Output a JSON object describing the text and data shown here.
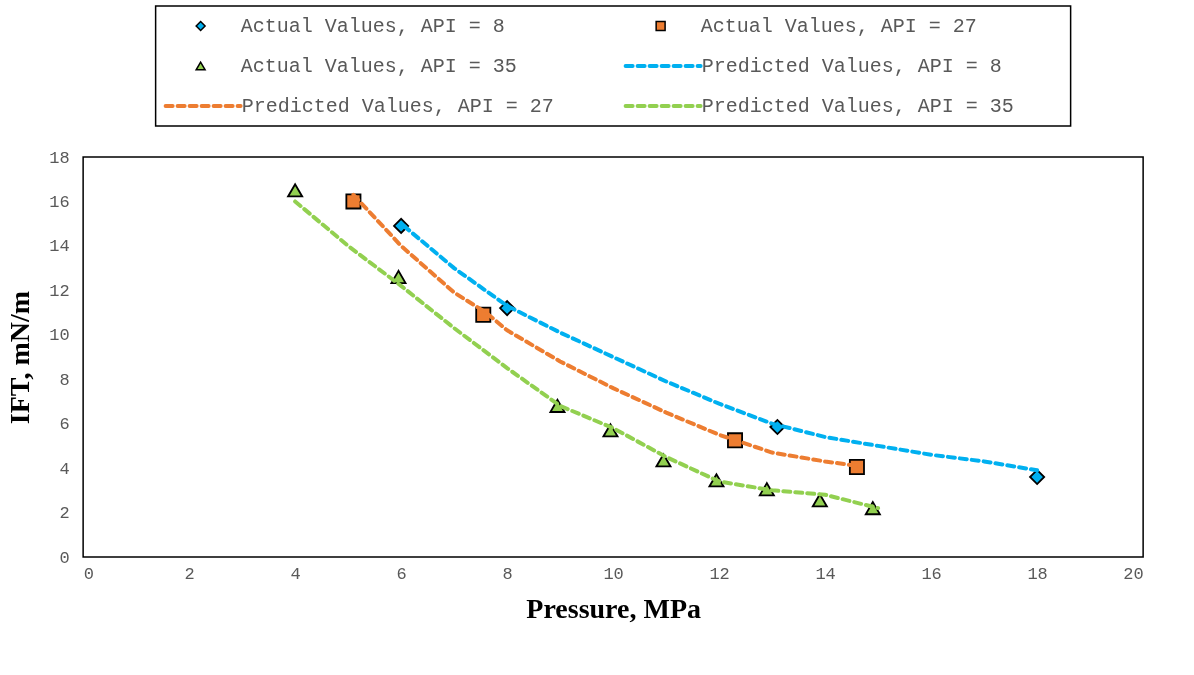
{
  "chart_data": {
    "type": "scatter",
    "xlabel": "Pressure, MPa",
    "ylabel": "IFT, mN/m",
    "xlim": [
      0,
      20
    ],
    "ylim": [
      0,
      18
    ],
    "xticks": [
      0,
      2,
      4,
      6,
      8,
      10,
      12,
      14,
      16,
      18,
      20
    ],
    "yticks": [
      0,
      2,
      4,
      6,
      8,
      10,
      12,
      14,
      16,
      18
    ],
    "grid": false,
    "legend": "top",
    "series": [
      {
        "name": "Actual Values, API = 8",
        "marker": "diamond",
        "color": "#00b0f0",
        "x": [
          6.0,
          8.0,
          13.1,
          18.0
        ],
        "values": [
          14.9,
          11.2,
          5.85,
          3.6
        ]
      },
      {
        "name": "Actual Values, API = 27",
        "marker": "square",
        "color": "#ed7d31",
        "x": [
          5.1,
          7.55,
          12.3,
          14.6
        ],
        "values": [
          16.0,
          10.9,
          5.25,
          4.05
        ]
      },
      {
        "name": "Actual Values, API = 35",
        "marker": "triangle",
        "color": "#92d050",
        "x": [
          4.0,
          5.95,
          8.95,
          9.95,
          10.95,
          11.95,
          12.9,
          13.9,
          14.9
        ],
        "values": [
          16.5,
          12.6,
          6.8,
          5.7,
          4.35,
          3.45,
          3.05,
          2.55,
          2.2
        ]
      },
      {
        "name": "Predicted Values, API = 8",
        "type": "line",
        "line_style": "dashed",
        "marker": "none",
        "color": "#00b0f0",
        "x": [
          6.05,
          7,
          8,
          9,
          10,
          11,
          12,
          13,
          14,
          15,
          16,
          17,
          18
        ],
        "values": [
          14.9,
          13.0,
          11.3,
          10.1,
          9.0,
          7.9,
          6.9,
          6.0,
          5.4,
          5.0,
          4.6,
          4.3,
          3.9
        ]
      },
      {
        "name": "Predicted Values, API = 27",
        "type": "line",
        "line_style": "dashed",
        "marker": "none",
        "color": "#ed7d31",
        "x": [
          5.1,
          6,
          7,
          7.6,
          8,
          9,
          10,
          11,
          12,
          13,
          14,
          14.6
        ],
        "values": [
          16.3,
          14.0,
          11.9,
          11.0,
          10.2,
          8.8,
          7.6,
          6.5,
          5.5,
          4.7,
          4.3,
          4.1
        ]
      },
      {
        "name": "Predicted Values, API = 35",
        "type": "line",
        "line_style": "dashed",
        "marker": "none",
        "color": "#92d050",
        "x": [
          4,
          5,
          6,
          7,
          8,
          9,
          10,
          11,
          12,
          13,
          14,
          15
        ],
        "values": [
          16.0,
          14.0,
          12.2,
          10.3,
          8.5,
          6.8,
          5.8,
          4.5,
          3.4,
          3.0,
          2.8,
          2.2
        ]
      }
    ]
  }
}
